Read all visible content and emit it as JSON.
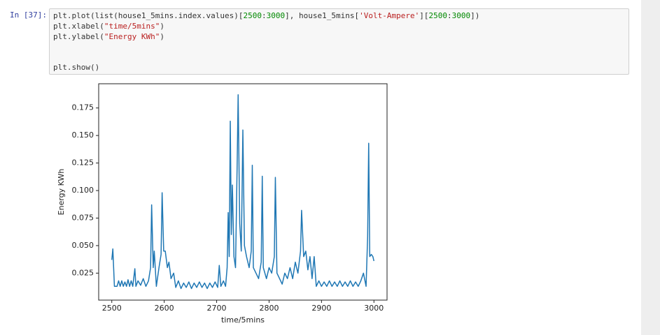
{
  "cell": {
    "prompt": "In [37]:",
    "lines": [
      [
        {
          "text": "plt.plot(list(house1_5mins.index.values)[",
          "color": "#333333"
        },
        {
          "text": "2500",
          "color": "#008800"
        },
        {
          "text": ":",
          "color": "#333333"
        },
        {
          "text": "3000",
          "color": "#008800"
        },
        {
          "text": "], house1_5mins[",
          "color": "#333333"
        },
        {
          "text": "'Volt-Ampere'",
          "color": "#ba2121"
        },
        {
          "text": "][",
          "color": "#333333"
        },
        {
          "text": "2500",
          "color": "#008800"
        },
        {
          "text": ":",
          "color": "#333333"
        },
        {
          "text": "3000",
          "color": "#008800"
        },
        {
          "text": "])",
          "color": "#333333"
        }
      ],
      [
        {
          "text": "plt.xlabel(",
          "color": "#333333"
        },
        {
          "text": "\"time/5mins\"",
          "color": "#ba2121"
        },
        {
          "text": ")",
          "color": "#333333"
        }
      ],
      [
        {
          "text": "plt.ylabel(",
          "color": "#333333"
        },
        {
          "text": "\"Energy KWh\"",
          "color": "#ba2121"
        },
        {
          "text": ")",
          "color": "#333333"
        }
      ],
      [
        {
          "text": "plt.show()",
          "color": "#333333"
        }
      ]
    ]
  },
  "chart_data": {
    "type": "line",
    "x_label": "time/5mins",
    "y_label": "Energy KWh",
    "xlim": [
      2475,
      3025
    ],
    "ylim": [
      0.0005,
      0.197
    ],
    "xticks": [
      2500,
      2600,
      2700,
      2800,
      2900,
      3000
    ],
    "yticks": [
      {
        "value": 0.025,
        "label": "0.025"
      },
      {
        "value": 0.05,
        "label": "0.050"
      },
      {
        "value": 0.075,
        "label": "0.075"
      },
      {
        "value": 0.1,
        "label": "0.100"
      },
      {
        "value": 0.125,
        "label": "0.125"
      },
      {
        "value": 0.15,
        "label": "0.150"
      },
      {
        "value": 0.175,
        "label": "0.175"
      }
    ],
    "series": [
      {
        "color": "#1f77b4",
        "x": [
          2500,
          2502,
          2505,
          2510,
          2513,
          2516,
          2519,
          2522,
          2525,
          2528,
          2531,
          2534,
          2537,
          2540,
          2544,
          2546,
          2550,
          2555,
          2560,
          2565,
          2570,
          2574,
          2576,
          2579,
          2581,
          2585,
          2590,
          2594,
          2596,
          2599,
          2602,
          2606,
          2609,
          2613,
          2618,
          2622,
          2627,
          2632,
          2637,
          2642,
          2647,
          2652,
          2657,
          2662,
          2667,
          2672,
          2677,
          2682,
          2687,
          2692,
          2697,
          2702,
          2705,
          2708,
          2713,
          2717,
          2720,
          2722,
          2724,
          2726,
          2728,
          2730,
          2733,
          2736,
          2739,
          2741,
          2744,
          2747,
          2750,
          2753,
          2757,
          2762,
          2766,
          2768,
          2770,
          2775,
          2780,
          2785,
          2787,
          2789,
          2795,
          2800,
          2805,
          2810,
          2812,
          2815,
          2820,
          2825,
          2830,
          2835,
          2840,
          2845,
          2850,
          2855,
          2860,
          2862,
          2866,
          2870,
          2874,
          2878,
          2882,
          2886,
          2890,
          2895,
          2900,
          2905,
          2910,
          2915,
          2920,
          2925,
          2930,
          2935,
          2940,
          2945,
          2950,
          2955,
          2960,
          2965,
          2970,
          2975,
          2980,
          2985,
          2988,
          2990,
          2992,
          2995,
          2998,
          3000
        ],
        "values": [
          0.037,
          0.047,
          0.013,
          0.013,
          0.018,
          0.013,
          0.018,
          0.013,
          0.017,
          0.013,
          0.019,
          0.013,
          0.018,
          0.013,
          0.029,
          0.013,
          0.018,
          0.014,
          0.02,
          0.013,
          0.018,
          0.03,
          0.087,
          0.03,
          0.045,
          0.013,
          0.03,
          0.042,
          0.098,
          0.045,
          0.045,
          0.03,
          0.035,
          0.02,
          0.025,
          0.012,
          0.018,
          0.011,
          0.016,
          0.012,
          0.017,
          0.011,
          0.016,
          0.012,
          0.017,
          0.012,
          0.016,
          0.011,
          0.016,
          0.012,
          0.017,
          0.012,
          0.032,
          0.013,
          0.018,
          0.013,
          0.03,
          0.08,
          0.04,
          0.163,
          0.06,
          0.105,
          0.04,
          0.03,
          0.12,
          0.187,
          0.07,
          0.045,
          0.155,
          0.05,
          0.04,
          0.03,
          0.045,
          0.123,
          0.03,
          0.025,
          0.02,
          0.035,
          0.113,
          0.03,
          0.02,
          0.03,
          0.025,
          0.04,
          0.112,
          0.025,
          0.02,
          0.015,
          0.025,
          0.02,
          0.03,
          0.02,
          0.035,
          0.025,
          0.045,
          0.082,
          0.04,
          0.045,
          0.028,
          0.04,
          0.02,
          0.04,
          0.013,
          0.018,
          0.013,
          0.017,
          0.013,
          0.018,
          0.013,
          0.017,
          0.013,
          0.018,
          0.013,
          0.017,
          0.013,
          0.018,
          0.013,
          0.017,
          0.013,
          0.018,
          0.025,
          0.013,
          0.058,
          0.143,
          0.04,
          0.042,
          0.04,
          0.036
        ]
      }
    ]
  }
}
